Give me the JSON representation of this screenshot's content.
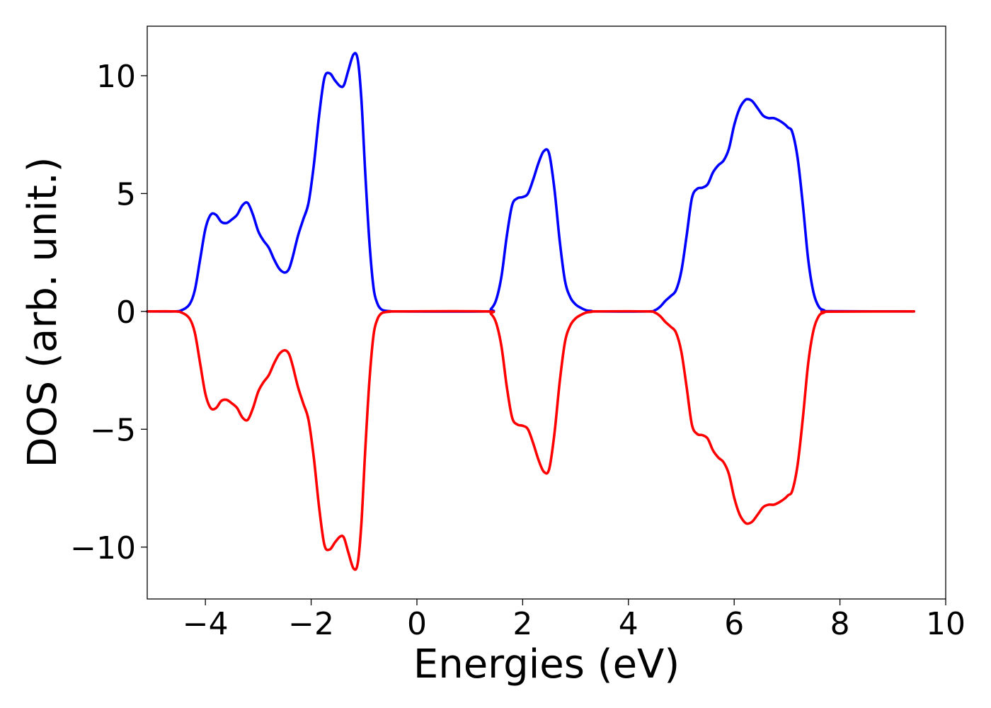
{
  "chart_data": {
    "type": "line",
    "title": "",
    "xlabel": "Energies (eV)",
    "ylabel": "DOS (arb. unit.)",
    "xlim": [
      -5.1,
      10.0
    ],
    "ylim": [
      -12.2,
      12.1
    ],
    "grid": false,
    "legend": "none",
    "xticks": [
      -4,
      -2,
      0,
      2,
      4,
      6,
      8,
      10
    ],
    "xtick_labels": [
      "−4",
      "−2",
      "0",
      "2",
      "4",
      "6",
      "8",
      "10"
    ],
    "yticks": [
      -10,
      -5,
      0,
      5,
      10
    ],
    "ytick_labels": [
      "−10",
      "−5",
      "0",
      "5",
      "10"
    ],
    "series": [
      {
        "color": "#0000ff",
        "x": [
          -5.1,
          -4.6,
          -4.45,
          -4.3,
          -4.2,
          -4.1,
          -4.0,
          -3.9,
          -3.8,
          -3.7,
          -3.6,
          -3.5,
          -3.4,
          -3.3,
          -3.2,
          -3.1,
          -3.0,
          -2.9,
          -2.8,
          -2.7,
          -2.6,
          -2.5,
          -2.42,
          -2.35,
          -2.25,
          -2.15,
          -2.05,
          -1.95,
          -1.85,
          -1.75,
          -1.65,
          -1.55,
          -1.45,
          -1.38,
          -1.3,
          -1.2,
          -1.12,
          -1.05,
          -0.98,
          -0.9,
          -0.82,
          -0.75,
          -0.68,
          -0.6,
          -0.5,
          -0.4,
          1.3,
          1.4,
          1.5,
          1.6,
          1.7,
          1.8,
          1.9,
          2.0,
          2.1,
          2.2,
          2.3,
          2.4,
          2.5,
          2.6,
          2.7,
          2.8,
          2.9,
          3.0,
          3.1,
          3.2,
          3.3,
          3.4,
          4.35,
          4.5,
          4.6,
          4.7,
          4.8,
          4.9,
          5.0,
          5.1,
          5.2,
          5.3,
          5.4,
          5.5,
          5.6,
          5.7,
          5.8,
          5.9,
          6.0,
          6.1,
          6.2,
          6.27,
          6.35,
          6.45,
          6.55,
          6.65,
          6.75,
          6.85,
          6.95,
          7.02,
          7.1,
          7.2,
          7.3,
          7.4,
          7.5,
          7.6,
          7.7,
          7.8,
          9.4
        ],
        "y": [
          0,
          0,
          0.05,
          0.3,
          0.9,
          2.2,
          3.5,
          4.1,
          4.1,
          3.8,
          3.75,
          3.9,
          4.1,
          4.5,
          4.6,
          4.1,
          3.4,
          3.0,
          2.7,
          2.2,
          1.8,
          1.65,
          1.8,
          2.3,
          3.2,
          3.9,
          4.6,
          6.2,
          8.3,
          9.9,
          10.1,
          9.8,
          9.55,
          9.6,
          10.2,
          10.9,
          10.7,
          9.0,
          6.0,
          3.0,
          1.0,
          0.35,
          0.1,
          0.03,
          0.01,
          0,
          0,
          0.1,
          0.5,
          1.5,
          3.2,
          4.5,
          4.8,
          4.85,
          5.0,
          5.6,
          6.3,
          6.8,
          6.7,
          5.2,
          3.0,
          1.3,
          0.6,
          0.3,
          0.15,
          0.05,
          0.02,
          0,
          0,
          0.05,
          0.2,
          0.45,
          0.65,
          0.9,
          1.7,
          3.2,
          4.8,
          5.2,
          5.25,
          5.4,
          5.9,
          6.2,
          6.4,
          6.9,
          7.9,
          8.6,
          8.95,
          9.0,
          8.9,
          8.6,
          8.3,
          8.2,
          8.2,
          8.1,
          7.95,
          7.8,
          7.6,
          6.5,
          4.5,
          2.2,
          0.8,
          0.2,
          0.05,
          0.01,
          0
        ]
      },
      {
        "color": "#ff0000",
        "x": [
          -5.1,
          -4.6,
          -4.45,
          -4.3,
          -4.2,
          -4.1,
          -4.0,
          -3.9,
          -3.8,
          -3.7,
          -3.6,
          -3.5,
          -3.4,
          -3.3,
          -3.2,
          -3.1,
          -3.0,
          -2.9,
          -2.8,
          -2.7,
          -2.6,
          -2.5,
          -2.42,
          -2.35,
          -2.25,
          -2.15,
          -2.05,
          -1.95,
          -1.85,
          -1.75,
          -1.65,
          -1.55,
          -1.45,
          -1.38,
          -1.3,
          -1.2,
          -1.12,
          -1.05,
          -0.98,
          -0.9,
          -0.82,
          -0.75,
          -0.68,
          -0.6,
          -0.5,
          -0.4,
          1.3,
          1.4,
          1.5,
          1.6,
          1.7,
          1.8,
          1.9,
          2.0,
          2.1,
          2.2,
          2.3,
          2.4,
          2.5,
          2.6,
          2.7,
          2.8,
          2.9,
          3.0,
          3.1,
          3.2,
          3.3,
          3.4,
          4.35,
          4.5,
          4.6,
          4.7,
          4.8,
          4.9,
          5.0,
          5.1,
          5.2,
          5.3,
          5.4,
          5.5,
          5.6,
          5.7,
          5.8,
          5.9,
          6.0,
          6.1,
          6.2,
          6.27,
          6.35,
          6.45,
          6.55,
          6.65,
          6.75,
          6.85,
          6.95,
          7.02,
          7.1,
          7.2,
          7.3,
          7.4,
          7.5,
          7.6,
          7.7,
          7.8,
          9.4
        ],
        "y": [
          0,
          0,
          -0.05,
          -0.3,
          -0.9,
          -2.2,
          -3.5,
          -4.1,
          -4.1,
          -3.8,
          -3.75,
          -3.9,
          -4.1,
          -4.5,
          -4.6,
          -4.1,
          -3.4,
          -3.0,
          -2.7,
          -2.2,
          -1.8,
          -1.65,
          -1.8,
          -2.3,
          -3.2,
          -3.9,
          -4.6,
          -6.2,
          -8.3,
          -9.9,
          -10.1,
          -9.8,
          -9.55,
          -9.6,
          -10.2,
          -10.9,
          -10.7,
          -9.0,
          -6.0,
          -3.0,
          -1.0,
          -0.35,
          -0.1,
          -0.03,
          -0.01,
          0,
          0,
          -0.1,
          -0.5,
          -1.5,
          -3.2,
          -4.5,
          -4.8,
          -4.85,
          -5.0,
          -5.6,
          -6.3,
          -6.8,
          -6.7,
          -5.2,
          -3.0,
          -1.3,
          -0.6,
          -0.3,
          -0.15,
          -0.05,
          -0.02,
          0,
          0,
          -0.05,
          -0.2,
          -0.45,
          -0.65,
          -0.9,
          -1.7,
          -3.2,
          -4.8,
          -5.2,
          -5.25,
          -5.4,
          -5.9,
          -6.2,
          -6.4,
          -6.9,
          -7.9,
          -8.6,
          -8.95,
          -9.0,
          -8.9,
          -8.6,
          -8.3,
          -8.2,
          -8.2,
          -8.1,
          -7.95,
          -7.8,
          -7.6,
          -6.5,
          -4.5,
          -2.2,
          -0.8,
          -0.2,
          -0.05,
          -0.01,
          0
        ]
      }
    ]
  }
}
